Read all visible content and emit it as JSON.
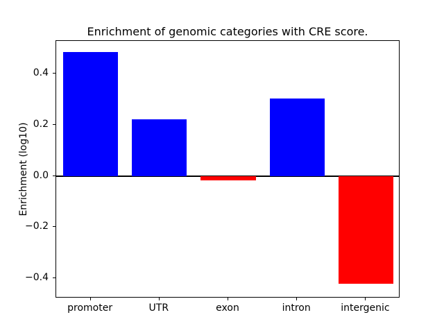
{
  "chart_data": {
    "type": "bar",
    "title": "Enrichment of genomic categories with CRE score.",
    "xlabel": "",
    "ylabel": "Enrichment (log10)",
    "categories": [
      "promoter",
      "UTR",
      "exon",
      "intron",
      "intergenic"
    ],
    "values": [
      0.485,
      0.222,
      -0.018,
      0.303,
      -0.42
    ],
    "bar_colors": [
      "#0000ff",
      "#0000ff",
      "#ff0000",
      "#0000ff",
      "#ff0000"
    ],
    "positive_color": "#0000ff",
    "negative_color": "#ff0000",
    "ylim": [
      -0.478,
      0.528
    ],
    "yticks": [
      -0.4,
      -0.2,
      0.0,
      0.2,
      0.4
    ],
    "grid": false,
    "zero_line": true,
    "legend": null
  }
}
